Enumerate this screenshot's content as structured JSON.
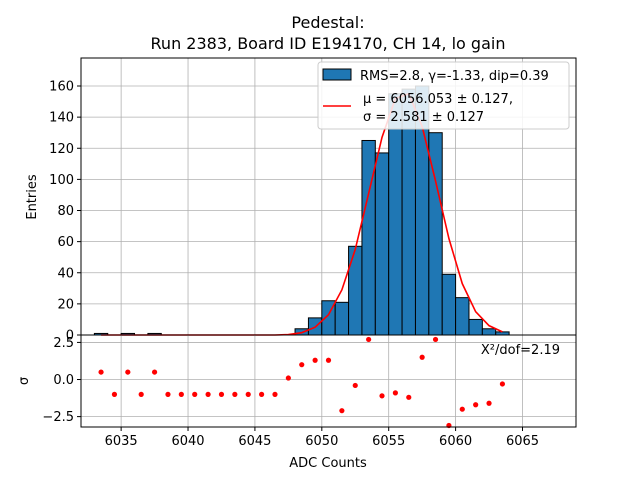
{
  "title_line1": "Pedestal:",
  "title_line2": "Run 2383, Board ID E194170, CH 14, lo gain",
  "chart_data": [
    {
      "type": "bar",
      "panel": "histogram",
      "ylabel": "Entries",
      "xlim": [
        6032,
        6069
      ],
      "ylim": [
        0,
        178
      ],
      "yticks": [
        0,
        20,
        40,
        60,
        80,
        100,
        120,
        140,
        160
      ],
      "grid": true,
      "bin_width": 1,
      "bin_left_edges": [
        6033,
        6034,
        6035,
        6036,
        6037,
        6038,
        6039,
        6040,
        6041,
        6042,
        6043,
        6044,
        6045,
        6046,
        6047,
        6048,
        6049,
        6050,
        6051,
        6052,
        6053,
        6054,
        6055,
        6056,
        6057,
        6058,
        6059,
        6060,
        6061,
        6062,
        6063
      ],
      "counts": [
        1,
        0,
        1,
        0,
        1,
        0,
        0,
        0,
        0,
        0,
        0,
        0,
        0,
        0,
        0,
        4,
        11,
        22,
        21,
        57,
        125,
        117,
        155,
        158,
        160,
        130,
        39,
        24,
        10,
        4,
        2
      ],
      "fit_curve": {
        "color": "#ff0000",
        "x": [
          6033.5,
          6034.5,
          6035.5,
          6036.5,
          6037.5,
          6038.5,
          6039.5,
          6040.5,
          6041.5,
          6042.5,
          6043.5,
          6044.5,
          6045.5,
          6046.5,
          6047.5,
          6048.5,
          6049.5,
          6050.5,
          6051.5,
          6052.5,
          6053.5,
          6054.5,
          6055.5,
          6056.5,
          6057.5,
          6058.5,
          6059.5,
          6060.5,
          6061.5,
          6062.5,
          6063.5
        ],
        "y": [
          0,
          0,
          0,
          0,
          0,
          0,
          0,
          0,
          0,
          0,
          0,
          0,
          0,
          0,
          0.3,
          1.5,
          5,
          13,
          29,
          55,
          91,
          127,
          152,
          155,
          134,
          99,
          62,
          33,
          15,
          6,
          2
        ]
      },
      "legend": {
        "placement": "top-right",
        "entries": [
          {
            "kind": "patch",
            "label": "RMS=2.8, γ=-1.33, dip=0.39",
            "color": "#1f77b4"
          },
          {
            "kind": "line",
            "label_line1": "μ = 6056.053 ± 0.127,",
            "label_line2": "σ = 2.581 ± 0.127",
            "color": "#ff0000"
          }
        ]
      },
      "bar_color": "#1f77b4"
    },
    {
      "type": "scatter",
      "panel": "residuals",
      "xlabel": "ADC Counts",
      "ylabel": "σ",
      "xlim": [
        6032,
        6069
      ],
      "ylim": [
        -3.2,
        3.0
      ],
      "xticks": [
        6035,
        6040,
        6045,
        6050,
        6055,
        6060,
        6065
      ],
      "yticks": [
        -2.5,
        0.0,
        2.5
      ],
      "grid": true,
      "annotation": "Χ²/dof=2.19",
      "color": "#ff0000",
      "x": [
        6033.5,
        6034.5,
        6035.5,
        6036.5,
        6037.5,
        6038.5,
        6039.5,
        6040.5,
        6041.5,
        6042.5,
        6043.5,
        6044.5,
        6045.5,
        6046.5,
        6047.5,
        6048.5,
        6049.5,
        6050.5,
        6051.5,
        6052.5,
        6053.5,
        6054.5,
        6055.5,
        6056.5,
        6057.5,
        6058.5,
        6059.5,
        6060.5,
        6061.5,
        6062.5,
        6063.5
      ],
      "y": [
        0.5,
        -1.0,
        0.5,
        -1.0,
        0.5,
        -1.0,
        -1.0,
        -1.0,
        -1.0,
        -1.0,
        -1.0,
        -1.0,
        -1.0,
        -1.0,
        0.1,
        1.0,
        1.3,
        1.3,
        -2.1,
        -0.4,
        2.7,
        -1.1,
        -0.9,
        -1.2,
        1.5,
        2.7,
        -3.1,
        -2.0,
        -1.7,
        -1.6,
        -0.3
      ]
    }
  ]
}
